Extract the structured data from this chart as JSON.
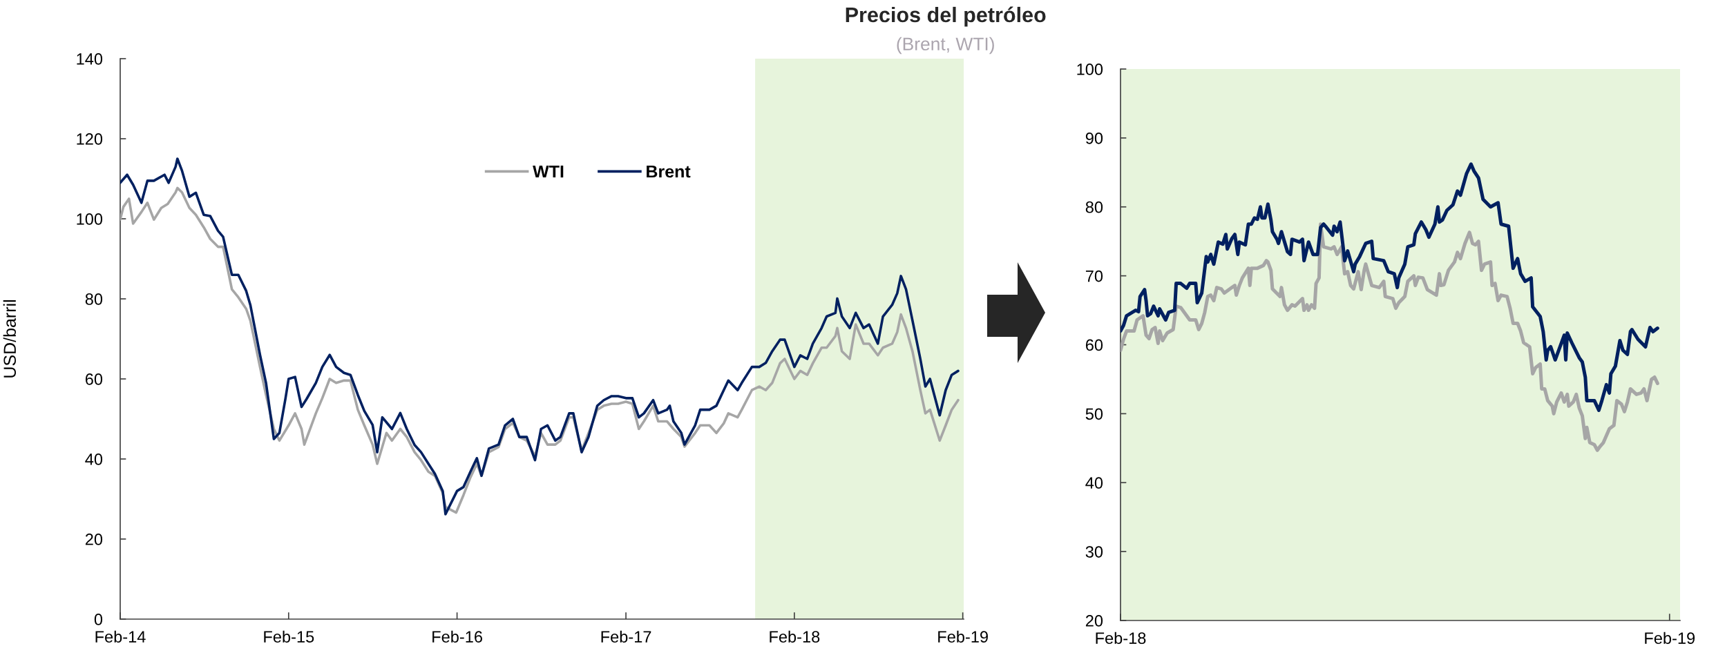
{
  "chart_data": [
    {
      "type": "line",
      "title": "Precios del petróleo",
      "subtitle": "(Brent, WTI)",
      "ylabel": "USD/barril",
      "legend": "top",
      "xlim": [
        "2014-02-01",
        "2019-02-03"
      ],
      "xticks": [
        {
          "value": "2014-02-01",
          "label": "Feb-14"
        },
        {
          "value": "2015-02-01",
          "label": "Feb-15"
        },
        {
          "value": "2016-02-01",
          "label": "Feb-16"
        },
        {
          "value": "2017-02-01",
          "label": "Feb-17"
        },
        {
          "value": "2018-02-01",
          "label": "Feb-18"
        },
        {
          "value": "2019-02-01",
          "label": "Feb-19"
        }
      ],
      "ylim": [
        0,
        140
      ],
      "yticks": [
        0,
        20,
        40,
        60,
        80,
        100,
        120,
        140
      ],
      "bands": [
        {
          "axis": "x",
          "from": "2017-11-08",
          "to": "2019-02-03",
          "color": "#e7f4dc"
        }
      ],
      "series": [
        {
          "name": "WTI",
          "color": "#a6a6a6",
          "x": [
            "2014-02-01",
            "2014-02-08",
            "2014-02-20",
            "2014-03-01",
            "2014-03-19",
            "2014-04-01",
            "2014-04-15",
            "2014-05-01",
            "2014-05-15",
            "2014-06-01",
            "2014-06-05",
            "2014-06-15",
            "2014-07-01",
            "2014-07-15",
            "2014-08-01",
            "2014-08-15",
            "2014-09-01",
            "2014-09-12",
            "2014-10-01",
            "2014-10-15",
            "2014-11-01",
            "2014-11-10",
            "2014-12-01",
            "2014-12-14",
            "2014-12-31",
            "2015-01-12",
            "2015-02-01",
            "2015-02-15",
            "2015-03-01",
            "2015-03-07",
            "2015-04-01",
            "2015-04-15",
            "2015-05-01",
            "2015-05-15",
            "2015-06-01",
            "2015-06-15",
            "2015-07-01",
            "2015-07-15",
            "2015-08-02",
            "2015-08-12",
            "2015-09-01",
            "2015-09-13",
            "2015-10-01",
            "2015-10-15",
            "2015-11-01",
            "2015-11-15",
            "2015-12-01",
            "2015-12-15",
            "2016-01-01",
            "2016-01-07",
            "2016-01-30",
            "2016-02-15",
            "2016-03-01",
            "2016-03-15",
            "2016-03-25",
            "2016-04-10",
            "2016-05-01",
            "2016-05-15",
            "2016-06-01",
            "2016-06-15",
            "2016-07-01",
            "2016-07-19",
            "2016-08-01",
            "2016-08-15",
            "2016-09-01",
            "2016-09-12",
            "2016-10-01",
            "2016-10-10",
            "2016-10-28",
            "2016-11-12",
            "2016-12-01",
            "2016-12-15",
            "2017-01-01",
            "2017-01-15",
            "2017-02-01",
            "2017-02-15",
            "2017-03-01",
            "2017-03-12",
            "2017-04-01",
            "2017-04-12",
            "2017-05-01",
            "2017-05-15",
            "2017-06-01",
            "2017-06-08",
            "2017-07-01",
            "2017-07-12",
            "2017-08-01",
            "2017-08-16",
            "2017-09-01",
            "2017-09-11",
            "2017-10-01",
            "2017-10-10",
            "2017-11-01",
            "2017-11-17",
            "2017-12-01",
            "2017-12-15",
            "2018-01-01",
            "2018-01-11",
            "2018-02-01",
            "2018-02-14",
            "2018-03-01",
            "2018-03-13",
            "2018-04-01",
            "2018-04-12",
            "2018-05-01",
            "2018-05-05",
            "2018-05-15",
            "2018-06-01",
            "2018-06-14",
            "2018-07-01",
            "2018-07-13",
            "2018-08-01",
            "2018-08-12",
            "2018-09-01",
            "2018-09-12",
            "2018-09-20",
            "2018-10-01",
            "2018-10-15",
            "2018-11-01",
            "2018-11-12",
            "2018-11-22",
            "2018-12-13",
            "2018-12-26",
            "2019-01-08",
            "2019-01-22"
          ],
          "values": [
            99.8,
            103.0,
            105.0,
            98.8,
            101.7,
            104.0,
            99.8,
            102.7,
            103.7,
            106.6,
            107.7,
            106.6,
            102.7,
            101.0,
            97.9,
            95.0,
            93.0,
            93.0,
            82.4,
            80.4,
            77.5,
            74.6,
            63.0,
            56.0,
            47.5,
            44.6,
            48.4,
            51.4,
            47.5,
            43.6,
            51.4,
            55.2,
            60.0,
            59.0,
            59.6,
            59.6,
            52.3,
            48.4,
            43.6,
            38.8,
            46.5,
            44.6,
            47.5,
            45.5,
            41.7,
            39.7,
            36.8,
            35.8,
            31.5,
            28.0,
            26.6,
            31.0,
            35.4,
            38.8,
            35.8,
            41.7,
            43.0,
            47.5,
            49.0,
            45.5,
            44.6,
            40.7,
            46.5,
            43.6,
            43.6,
            44.6,
            50.4,
            50.4,
            42.1,
            46.5,
            52.3,
            53.3,
            53.8,
            53.8,
            54.3,
            53.8,
            47.5,
            49.4,
            53.3,
            49.4,
            49.4,
            47.5,
            45.5,
            43.1,
            46.5,
            48.4,
            48.4,
            46.5,
            48.9,
            51.4,
            50.4,
            52.3,
            57.2,
            58.1,
            57.2,
            59.0,
            63.9,
            65.0,
            60.0,
            62.0,
            61.0,
            63.9,
            67.8,
            67.8,
            70.7,
            72.7,
            66.9,
            65.0,
            73.6,
            68.8,
            68.8,
            65.9,
            67.8,
            68.8,
            71.7,
            76.1,
            72.7,
            66.9,
            57.2,
            51.4,
            52.3,
            44.6,
            48.4,
            52.3,
            54.7
          ]
        },
        {
          "name": "Brent",
          "color": "#002060",
          "x": [
            "2014-02-01",
            "2014-02-16",
            "2014-03-01",
            "2014-03-19",
            "2014-04-01",
            "2014-04-15",
            "2014-05-08",
            "2014-05-17",
            "2014-06-01",
            "2014-06-05",
            "2014-06-15",
            "2014-07-01",
            "2014-07-15",
            "2014-08-01",
            "2014-08-15",
            "2014-09-01",
            "2014-09-12",
            "2014-10-01",
            "2014-10-15",
            "2014-11-01",
            "2014-11-10",
            "2014-12-01",
            "2014-12-14",
            "2014-12-31",
            "2015-01-12",
            "2015-01-25",
            "2015-02-01",
            "2015-02-15",
            "2015-03-01",
            "2015-03-12",
            "2015-04-01",
            "2015-04-15",
            "2015-05-01",
            "2015-05-15",
            "2015-06-01",
            "2015-06-15",
            "2015-07-01",
            "2015-07-15",
            "2015-08-02",
            "2015-08-12",
            "2015-08-23",
            "2015-09-13",
            "2015-10-01",
            "2015-10-15",
            "2015-11-01",
            "2015-11-15",
            "2015-12-01",
            "2015-12-15",
            "2016-01-01",
            "2016-01-07",
            "2016-02-01",
            "2016-02-15",
            "2016-03-01",
            "2016-03-15",
            "2016-03-25",
            "2016-04-10",
            "2016-05-01",
            "2016-05-15",
            "2016-06-01",
            "2016-06-15",
            "2016-07-01",
            "2016-07-19",
            "2016-08-01",
            "2016-08-15",
            "2016-09-01",
            "2016-09-12",
            "2016-10-01",
            "2016-10-10",
            "2016-10-28",
            "2016-11-12",
            "2016-12-01",
            "2016-12-15",
            "2017-01-01",
            "2017-01-15",
            "2017-02-01",
            "2017-02-15",
            "2017-03-01",
            "2017-03-12",
            "2017-04-01",
            "2017-04-12",
            "2017-05-01",
            "2017-05-07",
            "2017-05-15",
            "2017-06-01",
            "2017-06-08",
            "2017-07-01",
            "2017-07-12",
            "2017-08-01",
            "2017-08-16",
            "2017-09-01",
            "2017-09-11",
            "2017-10-01",
            "2017-10-10",
            "2017-11-01",
            "2017-11-17",
            "2017-12-01",
            "2017-12-15",
            "2018-01-01",
            "2018-01-11",
            "2018-02-01",
            "2018-02-14",
            "2018-03-01",
            "2018-03-13",
            "2018-04-01",
            "2018-04-12",
            "2018-05-01",
            "2018-05-05",
            "2018-05-15",
            "2018-06-01",
            "2018-06-14",
            "2018-07-01",
            "2018-07-13",
            "2018-08-01",
            "2018-08-12",
            "2018-09-01",
            "2018-09-12",
            "2018-09-20",
            "2018-10-01",
            "2018-10-15",
            "2018-11-01",
            "2018-11-12",
            "2018-11-22",
            "2018-12-13",
            "2018-12-26",
            "2019-01-08",
            "2019-01-22"
          ],
          "values": [
            109.0,
            111.0,
            108.5,
            104.0,
            109.5,
            109.5,
            111.0,
            109.0,
            113.0,
            115.0,
            112.0,
            105.5,
            106.5,
            101.0,
            100.7,
            97.0,
            95.5,
            86.0,
            86.0,
            82.0,
            78.5,
            66.0,
            59.0,
            45.0,
            46.5,
            55.0,
            60.0,
            60.5,
            53.0,
            55.0,
            59.0,
            63.0,
            66.0,
            63.0,
            61.5,
            61.0,
            56.0,
            52.0,
            48.5,
            41.7,
            50.4,
            47.5,
            51.5,
            47.5,
            43.5,
            41.7,
            38.8,
            36.3,
            32.0,
            26.2,
            32.0,
            33.0,
            36.8,
            40.2,
            35.8,
            42.6,
            43.6,
            48.4,
            50.0,
            45.5,
            45.5,
            39.7,
            47.5,
            48.4,
            44.6,
            45.5,
            51.4,
            51.4,
            41.7,
            45.5,
            53.3,
            54.7,
            55.7,
            55.7,
            55.2,
            55.2,
            50.4,
            51.4,
            54.7,
            51.4,
            52.3,
            53.3,
            49.4,
            46.5,
            43.6,
            48.4,
            52.3,
            52.3,
            53.3,
            57.2,
            59.6,
            57.2,
            59.0,
            63.0,
            63.0,
            64.0,
            66.9,
            69.8,
            69.8,
            63.0,
            65.9,
            65.0,
            68.8,
            72.7,
            75.6,
            76.5,
            80.1,
            75.6,
            72.7,
            76.5,
            72.7,
            73.6,
            68.8,
            75.6,
            78.5,
            81.4,
            85.7,
            82.4,
            74.6,
            65.0,
            58.1,
            60.0,
            50.9,
            57.2,
            61.0,
            62.0
          ]
        }
      ]
    },
    {
      "type": "line",
      "xlim": [
        "2018-02-01",
        "2019-02-08"
      ],
      "xticks": [
        {
          "value": "2018-02-01",
          "label": "Feb-18"
        },
        {
          "value": "2019-02-01",
          "label": "Feb-19"
        }
      ],
      "ylim": [
        20,
        100
      ],
      "yticks": [
        20,
        30,
        40,
        50,
        60,
        70,
        80,
        90,
        100
      ],
      "bands": [
        {
          "axis": "x",
          "from": "2018-02-01",
          "to": "2019-02-08",
          "color": "#e7f4dc"
        }
      ],
      "series": [
        {
          "color": "#a6a6a6",
          "x": [
            "2018-02-01",
            "2018-02-03",
            "2018-02-05",
            "2018-02-10",
            "2018-02-12",
            "2018-02-16",
            "2018-02-18",
            "2018-02-20",
            "2018-02-22",
            "2018-02-24",
            "2018-02-26",
            "2018-02-27",
            "2018-03-01",
            "2018-03-04",
            "2018-03-08",
            "2018-03-10",
            "2018-03-13",
            "2018-03-17",
            "2018-03-19",
            "2018-03-23",
            "2018-03-25",
            "2018-03-27",
            "2018-03-29",
            "2018-03-31",
            "2018-04-02",
            "2018-04-04",
            "2018-04-06",
            "2018-04-09",
            "2018-04-11",
            "2018-04-16",
            "2018-04-18",
            "2018-04-19",
            "2018-04-21",
            "2018-04-23",
            "2018-04-27",
            "2018-04-28",
            "2018-04-29",
            "2018-05-03",
            "2018-05-07",
            "2018-05-09",
            "2018-05-10",
            "2018-05-12",
            "2018-05-13",
            "2018-05-18",
            "2018-05-19",
            "2018-05-21",
            "2018-05-23",
            "2018-05-26",
            "2018-05-28",
            "2018-06-02",
            "2018-06-03",
            "2018-06-05",
            "2018-06-06",
            "2018-06-08",
            "2018-06-10",
            "2018-06-11",
            "2018-06-13",
            "2018-06-14",
            "2018-06-16",
            "2018-06-21",
            "2018-06-23",
            "2018-06-25",
            "2018-06-28",
            "2018-06-30",
            "2018-07-02",
            "2018-07-04",
            "2018-07-06",
            "2018-07-09",
            "2018-07-11",
            "2018-07-13",
            "2018-07-14",
            "2018-07-18",
            "2018-07-23",
            "2018-07-26",
            "2018-07-27",
            "2018-08-01",
            "2018-08-03",
            "2018-08-05",
            "2018-08-09",
            "2018-08-11",
            "2018-08-15",
            "2018-08-16",
            "2018-08-18",
            "2018-08-21",
            "2018-08-24",
            "2018-08-30",
            "2018-09-01",
            "2018-09-02",
            "2018-09-04",
            "2018-09-07",
            "2018-09-11",
            "2018-09-13",
            "2018-09-15",
            "2018-09-18",
            "2018-09-21",
            "2018-09-23",
            "2018-09-25",
            "2018-09-27",
            "2018-09-29",
            "2018-10-01",
            "2018-10-05",
            "2018-10-06",
            "2018-10-08",
            "2018-10-10",
            "2018-10-12",
            "2018-10-16",
            "2018-10-18",
            "2018-10-20",
            "2018-10-23",
            "2018-10-25",
            "2018-10-27",
            "2018-10-31",
            "2018-11-02",
            "2018-11-04",
            "2018-11-07",
            "2018-11-08",
            "2018-11-10",
            "2018-11-12",
            "2018-11-15",
            "2018-11-16",
            "2018-11-18",
            "2018-11-21",
            "2018-11-23",
            "2018-11-25",
            "2018-11-26",
            "2018-11-29",
            "2018-12-01",
            "2018-12-03",
            "2018-12-05",
            "2018-12-07",
            "2018-12-08",
            "2018-12-10",
            "2018-12-13",
            "2018-12-15",
            "2018-12-17",
            "2018-12-19",
            "2018-12-23",
            "2018-12-26",
            "2018-12-28",
            "2018-12-31",
            "2019-01-02",
            "2019-01-04",
            "2019-01-06",
            "2019-01-10",
            "2019-01-13",
            "2019-01-15",
            "2019-01-17",
            "2019-01-20",
            "2019-01-22",
            "2019-01-24"
          ],
          "values": [
            59.2,
            60.8,
            62.0,
            62.0,
            63.6,
            64.2,
            61.4,
            60.9,
            62.2,
            62.5,
            60.2,
            62.0,
            60.6,
            61.7,
            62.2,
            65.6,
            65.4,
            64.2,
            63.6,
            63.6,
            62.2,
            63.1,
            64.7,
            67.0,
            67.2,
            66.4,
            68.3,
            68.1,
            67.5,
            68.3,
            68.6,
            67.2,
            68.6,
            69.7,
            71.1,
            68.6,
            71.1,
            71.1,
            71.5,
            72.2,
            72.0,
            70.8,
            68.1,
            67.0,
            68.3,
            65.8,
            65.0,
            65.8,
            65.6,
            66.7,
            65.0,
            65.8,
            65.0,
            65.8,
            65.3,
            68.9,
            69.7,
            77.5,
            74.2,
            73.9,
            74.2,
            73.1,
            74.2,
            70.3,
            70.6,
            68.6,
            68.1,
            70.6,
            68.0,
            70.8,
            71.7,
            68.6,
            68.3,
            69.2,
            67.0,
            66.7,
            65.3,
            66.1,
            67.0,
            69.2,
            70.0,
            68.6,
            69.8,
            69.7,
            68.0,
            67.2,
            70.3,
            68.6,
            68.7,
            70.8,
            72.0,
            73.4,
            72.5,
            74.7,
            76.3,
            74.7,
            74.5,
            75.0,
            70.8,
            71.7,
            72.0,
            68.6,
            68.9,
            66.4,
            67.2,
            67.0,
            65.3,
            63.1,
            63.1,
            62.0,
            60.3,
            59.7,
            55.8,
            56.7,
            57.2,
            53.6,
            53.6,
            51.9,
            51.1,
            50.0,
            51.7,
            53.0,
            51.7,
            52.8,
            51.1,
            51.7,
            52.8,
            50.8,
            49.7,
            46.4,
            48.0,
            45.8,
            45.5,
            44.7,
            45.3,
            45.8,
            47.8,
            48.3,
            51.9,
            51.4,
            50.3,
            51.7,
            53.6,
            52.8,
            53.0,
            53.6,
            51.9,
            55.0,
            55.3,
            54.4
          ]
        },
        {
          "color": "#002060",
          "x": [
            "2018-02-01",
            "2018-02-03",
            "2018-02-05",
            "2018-02-11",
            "2018-02-13",
            "2018-02-14",
            "2018-02-17",
            "2018-02-18",
            "2018-02-19",
            "2018-02-21",
            "2018-02-23",
            "2018-02-26",
            "2018-02-27",
            "2018-03-03",
            "2018-03-05",
            "2018-03-09",
            "2018-03-10",
            "2018-03-13",
            "2018-03-17",
            "2018-03-19",
            "2018-03-23",
            "2018-03-24",
            "2018-03-27",
            "2018-03-30",
            "2018-03-31",
            "2018-04-02",
            "2018-04-04",
            "2018-04-07",
            "2018-04-10",
            "2018-04-12",
            "2018-04-13",
            "2018-04-16",
            "2018-04-18",
            "2018-04-20",
            "2018-04-21",
            "2018-04-25",
            "2018-04-27",
            "2018-04-29",
            "2018-05-01",
            "2018-05-03",
            "2018-05-05",
            "2018-05-06",
            "2018-05-08",
            "2018-05-10",
            "2018-05-12",
            "2018-05-13",
            "2018-05-16",
            "2018-05-17",
            "2018-05-19",
            "2018-05-23",
            "2018-05-25",
            "2018-05-26",
            "2018-05-31",
            "2018-06-02",
            "2018-06-03",
            "2018-06-06",
            "2018-06-09",
            "2018-06-12",
            "2018-06-14",
            "2018-06-16",
            "2018-06-18",
            "2018-06-22",
            "2018-06-23",
            "2018-06-25",
            "2018-06-27",
            "2018-06-29",
            "2018-06-30",
            "2018-07-02",
            "2018-07-06",
            "2018-07-07",
            "2018-07-10",
            "2018-07-14",
            "2018-07-18",
            "2018-07-19",
            "2018-07-26",
            "2018-07-29",
            "2018-08-02",
            "2018-08-04",
            "2018-08-05",
            "2018-08-09",
            "2018-08-11",
            "2018-08-15",
            "2018-08-16",
            "2018-08-20",
            "2018-08-23",
            "2018-08-25",
            "2018-08-29",
            "2018-08-31",
            "2018-09-01",
            "2018-09-03",
            "2018-09-06",
            "2018-09-10",
            "2018-09-13",
            "2018-09-15",
            "2018-09-19",
            "2018-09-22",
            "2018-09-24",
            "2018-09-27",
            "2018-09-30",
            "2018-10-05",
            "2018-10-10",
            "2018-10-12",
            "2018-10-17",
            "2018-10-20",
            "2018-10-23",
            "2018-10-25",
            "2018-10-28",
            "2018-11-01",
            "2018-11-02",
            "2018-11-07",
            "2018-11-09",
            "2018-11-11",
            "2018-11-12",
            "2018-11-14",
            "2018-11-17",
            "2018-11-23",
            "2018-11-24",
            "2018-11-25",
            "2018-11-28",
            "2018-12-03",
            "2018-12-05",
            "2018-12-07",
            "2018-12-08",
            "2018-12-13",
            "2018-12-16",
            "2018-12-18",
            "2018-12-21",
            "2018-12-23",
            "2018-12-24",
            "2018-12-27",
            "2018-12-30",
            "2019-01-01",
            "2019-01-04",
            "2019-01-06",
            "2019-01-07",
            "2019-01-11",
            "2019-01-16",
            "2019-01-19",
            "2019-01-21",
            "2019-01-24"
          ],
          "values": [
            62.0,
            62.8,
            64.2,
            65.0,
            64.8,
            67.0,
            68.0,
            66.4,
            64.2,
            64.5,
            65.6,
            64.2,
            65.2,
            63.6,
            64.7,
            65.0,
            68.9,
            68.9,
            68.2,
            68.9,
            68.9,
            66.1,
            67.5,
            72.8,
            72.0,
            73.1,
            71.7,
            74.9,
            74.6,
            76.0,
            73.9,
            75.4,
            76.0,
            73.1,
            74.9,
            74.5,
            77.5,
            77.5,
            78.4,
            78.2,
            80.0,
            78.4,
            78.4,
            80.4,
            78.1,
            76.4,
            75.3,
            74.7,
            76.4,
            73.5,
            73.1,
            75.3,
            74.9,
            75.3,
            72.2,
            74.9,
            73.1,
            73.1,
            77.0,
            77.5,
            77.0,
            75.9,
            77.2,
            76.4,
            77.8,
            74.2,
            72.2,
            73.6,
            70.6,
            71.7,
            72.8,
            74.7,
            75.0,
            72.5,
            72.2,
            70.6,
            70.3,
            68.3,
            69.7,
            71.7,
            74.2,
            74.5,
            76.1,
            77.8,
            76.7,
            75.6,
            77.5,
            80.0,
            77.8,
            78.1,
            79.5,
            80.3,
            82.3,
            81.7,
            84.8,
            86.2,
            85.2,
            84.2,
            81.1,
            80.0,
            80.6,
            77.5,
            77.2,
            71.1,
            72.5,
            70.3,
            69.2,
            69.7,
            65.5,
            64.1,
            61.9,
            57.8,
            59.2,
            59.7,
            57.8,
            61.4,
            57.8,
            61.7,
            60.3,
            58.1,
            57.5,
            55.3,
            51.9,
            51.9,
            50.5,
            51.9,
            54.2,
            53.0,
            55.8,
            56.9,
            60.6,
            59.2,
            58.6,
            61.9,
            62.2,
            60.8,
            59.7,
            62.5,
            61.9,
            62.4
          ]
        }
      ]
    }
  ]
}
